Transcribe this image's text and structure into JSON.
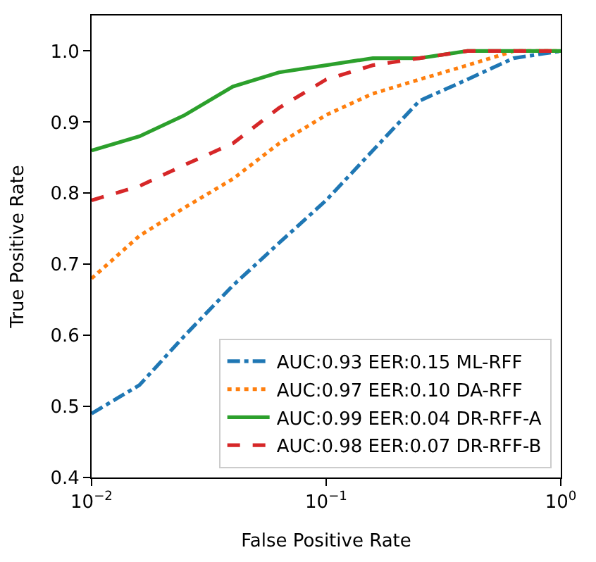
{
  "chart_data": {
    "type": "line",
    "xlabel": "False Positive Rate",
    "ylabel": "True Positive Rate",
    "log": "x",
    "xlim": [
      0.01,
      1
    ],
    "xticks": [
      {
        "value": 0.01,
        "label": "10$^{−2}$"
      },
      {
        "value": 0.1,
        "label": "10$^{−1}$"
      },
      {
        "value": 1,
        "label": "10$^{0}$"
      }
    ],
    "ylim": [
      0.4,
      1.05
    ],
    "yticks": [
      0.4,
      0.5,
      0.6,
      0.7,
      0.8,
      0.9,
      {
        "value": 1,
        "label": "1.0"
      }
    ],
    "x": [
      0.01,
      0.016,
      0.025,
      0.04,
      0.063,
      0.1,
      0.158,
      0.25,
      0.4,
      0.63,
      1
    ],
    "series": [
      {
        "name": "AUC:0.93 EER:0.15 ML-RFF",
        "color": "#1f77b4",
        "line_style": "dashdot",
        "values": [
          0.49,
          0.53,
          0.6,
          0.67,
          0.73,
          0.79,
          0.86,
          0.93,
          0.96,
          0.99,
          1.0
        ]
      },
      {
        "name": "AUC:0.97 EER:0.10 DA-RFF",
        "color": "#ff7f0e",
        "line_style": "dotted",
        "values": [
          0.68,
          0.74,
          0.78,
          0.82,
          0.87,
          0.91,
          0.94,
          0.96,
          0.98,
          1.0,
          1.0
        ]
      },
      {
        "name": "AUC:0.99 EER:0.04 DR-RFF-A",
        "color": "#2ca02c",
        "line_style": "solid",
        "values": [
          0.86,
          0.88,
          0.91,
          0.95,
          0.97,
          0.98,
          0.99,
          0.99,
          1.0,
          1.0,
          1.0
        ]
      },
      {
        "name": "AUC:0.98 EER:0.07 DR-RFF-B",
        "color": "#d62728",
        "line_style": "dashed",
        "values": [
          0.79,
          0.81,
          0.84,
          0.87,
          0.92,
          0.96,
          0.98,
          0.99,
          1.0,
          1.0,
          1.0
        ]
      }
    ],
    "legend": "bottom right"
  }
}
